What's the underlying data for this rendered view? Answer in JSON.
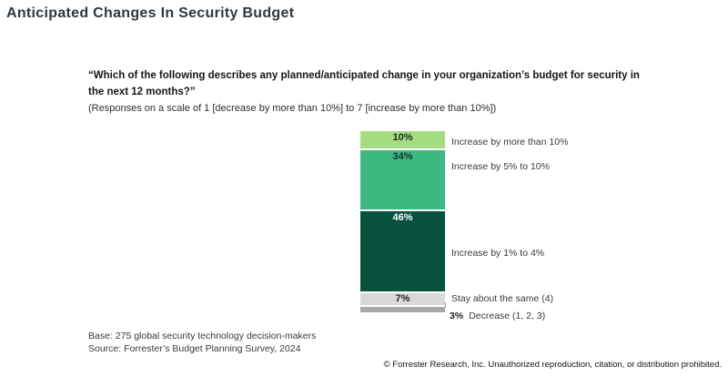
{
  "page": {
    "title": "Anticipated Changes In Security Budget",
    "question_bold": "“Which of the following describes any planned/anticipated change in your organization’s budget for security in the next 12 months?”",
    "question_note": "(Responses on a scale of 1 [decrease by more than 10%] to 7 [increase by more than 10%])",
    "base_line1": "Base: 275 global security technology decision-makers",
    "base_line2": "Source: Forrester’s Budget Planning Survey, 2024",
    "footer": "© Forrester Research, Inc. Unauthorized reproduction, citation, or distribution prohibited."
  },
  "chart_data": {
    "type": "bar",
    "subtype": "single-stacked-vertical-column",
    "title": "Anticipated Changes In Security Budget",
    "unit": "percent",
    "total": 100,
    "categories": [
      "Increase by more than 10%",
      "Increase by 5% to 10%",
      "Increase by 1% to 4%",
      "Stay about the same (4)",
      "Decrease (1, 2, 3)"
    ],
    "values": [
      10,
      34,
      46,
      7,
      3
    ],
    "segments": [
      {
        "label": "Increase by more than 10%",
        "value": 10,
        "value_label": "10%",
        "color": "#a4dd80",
        "text_color": "#1e2a26",
        "label_inside": true
      },
      {
        "label": "Increase by 5% to 10%",
        "value": 34,
        "value_label": "34%",
        "color": "#3db980",
        "text_color": "#15332a",
        "label_inside": true
      },
      {
        "label": "Increase by 1% to 4%",
        "value": 46,
        "value_label": "46%",
        "color": "#07513d",
        "text_color": "#ffffff",
        "label_inside": true
      },
      {
        "label": "Stay about the same (4)",
        "value": 7,
        "value_label": "7%",
        "color": "#d9d9d9",
        "text_color": "#222222",
        "label_inside": true
      },
      {
        "label": "Decrease (1, 2, 3)",
        "value": 3,
        "value_label": "3%",
        "color": "#a8a8a8",
        "text_color": "#222222",
        "label_inside": false
      }
    ],
    "legend_position": "right-of-bar",
    "grid": false,
    "axes": "none",
    "base": "275 global security technology decision-makers",
    "source": "Forrester’s Budget Planning Survey, 2024"
  }
}
